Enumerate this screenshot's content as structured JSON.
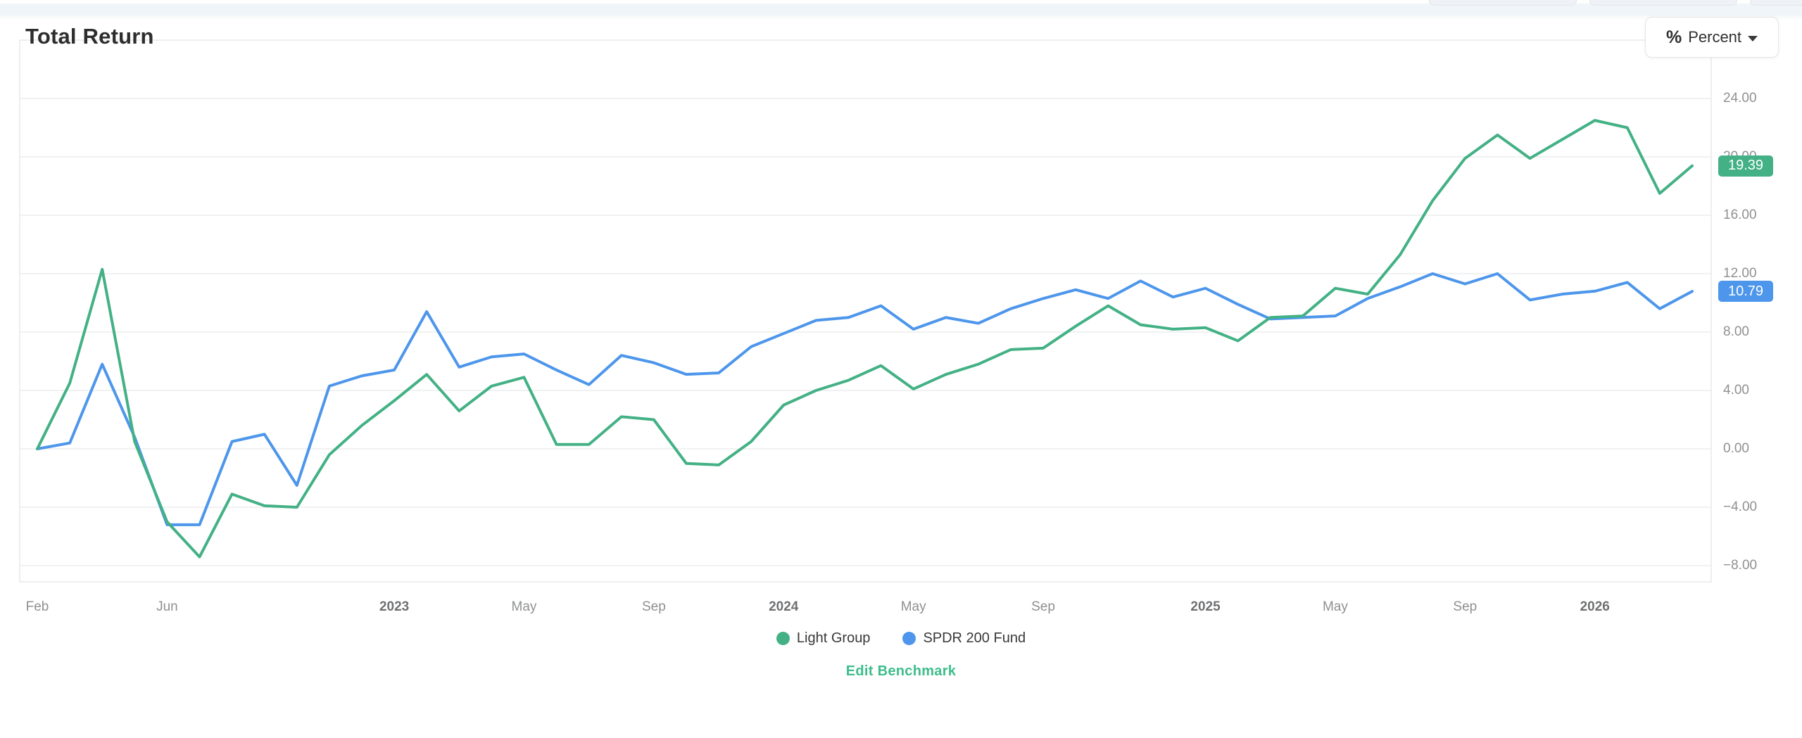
{
  "page": {
    "title": "Total Return"
  },
  "unit_selector": {
    "label": "Percent",
    "icon": "percent-icon",
    "caret_icon": "chevron-down-icon"
  },
  "footer": {
    "edit_benchmark_label": "Edit Benchmark",
    "link_color": "#3dbd8c"
  },
  "colors": {
    "band": "#f0f5f9",
    "grid": "#f0f1f2",
    "plot_border": "#e8e9ea",
    "tick_text": "#8f9092",
    "year_tick_text": "#6f7072"
  },
  "chart_data": {
    "type": "line",
    "x_interval": "monthly",
    "x_start": "2022-02",
    "x_end": "2026-05",
    "grid": "horizontal",
    "legend_position": "bottom-center",
    "ylim": [
      -9.2,
      28
    ],
    "y_ticks": [
      {
        "label": "24.00",
        "value": 24
      },
      {
        "label": "20.00",
        "value": 20
      },
      {
        "label": "16.00",
        "value": 16
      },
      {
        "label": "12.00",
        "value": 12
      },
      {
        "label": "8.00",
        "value": 8
      },
      {
        "label": "4.00",
        "value": 4
      },
      {
        "label": "0.00",
        "value": 0
      },
      {
        "label": "−4.00",
        "value": -4
      },
      {
        "label": "−8.00",
        "value": -8
      }
    ],
    "x_ticks": [
      {
        "label": "Feb",
        "index": 0,
        "bold": false
      },
      {
        "label": "Jun",
        "index": 4,
        "bold": false
      },
      {
        "label": "2023",
        "index": 11,
        "bold": true
      },
      {
        "label": "May",
        "index": 15,
        "bold": false
      },
      {
        "label": "Sep",
        "index": 19,
        "bold": false
      },
      {
        "label": "2024",
        "index": 23,
        "bold": true
      },
      {
        "label": "May",
        "index": 27,
        "bold": false
      },
      {
        "label": "Sep",
        "index": 31,
        "bold": false
      },
      {
        "label": "2025",
        "index": 36,
        "bold": true
      },
      {
        "label": "May",
        "index": 40,
        "bold": false
      },
      {
        "label": "Sep",
        "index": 44,
        "bold": false
      },
      {
        "label": "2026",
        "index": 48,
        "bold": true
      }
    ],
    "series": [
      {
        "name": "Light Group",
        "color": "#43b185",
        "badge": "19.39",
        "values": [
          0.0,
          4.5,
          12.3,
          0.5,
          -5.0,
          -7.4,
          -3.1,
          -3.9,
          -4.0,
          -0.4,
          1.6,
          3.3,
          5.1,
          2.6,
          4.3,
          4.9,
          0.3,
          0.3,
          2.2,
          2.0,
          -1.0,
          -1.1,
          0.5,
          3.0,
          4.0,
          4.7,
          5.7,
          4.1,
          5.1,
          5.8,
          6.8,
          6.9,
          8.4,
          9.8,
          8.5,
          8.2,
          8.3,
          7.4,
          9.0,
          9.1,
          11.0,
          10.6,
          13.3,
          17.0,
          19.9,
          21.5,
          19.9,
          21.2,
          22.5,
          22.0,
          17.5,
          19.39
        ]
      },
      {
        "name": "SPDR 200 Fund",
        "color": "#4d96eb",
        "badge": "10.79",
        "values": [
          0.0,
          0.4,
          5.8,
          0.8,
          -5.2,
          -5.2,
          0.5,
          1.0,
          -2.5,
          4.3,
          5.0,
          5.4,
          9.4,
          5.6,
          6.3,
          6.5,
          5.4,
          4.4,
          6.4,
          5.9,
          5.1,
          5.2,
          7.0,
          7.9,
          8.8,
          9.0,
          9.8,
          8.2,
          9.0,
          8.6,
          9.6,
          10.3,
          10.9,
          10.3,
          11.5,
          10.4,
          11.0,
          9.9,
          8.9,
          9.0,
          9.1,
          10.3,
          11.1,
          12.0,
          11.3,
          12.0,
          10.2,
          10.6,
          10.8,
          11.4,
          9.6,
          10.79
        ]
      }
    ]
  }
}
